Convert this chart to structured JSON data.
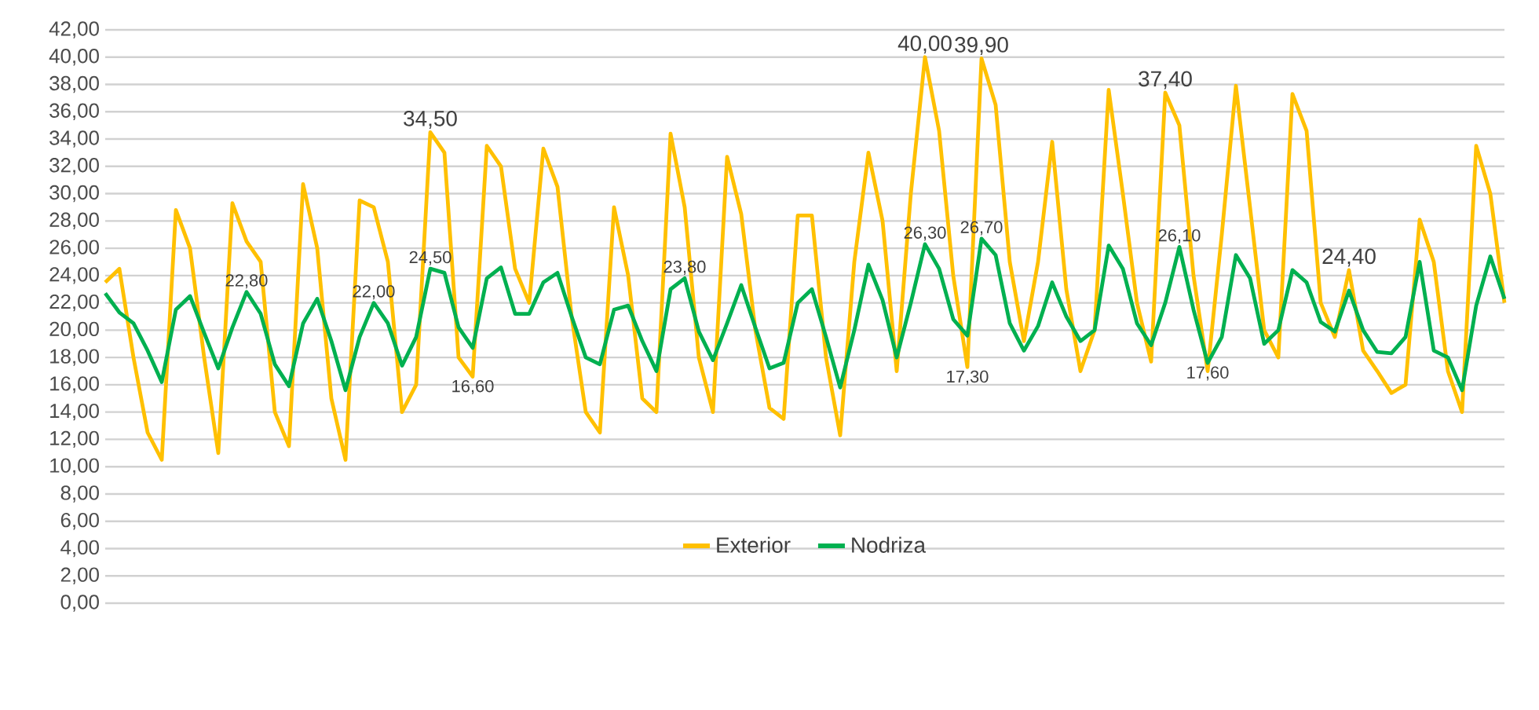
{
  "chart_data": {
    "type": "line",
    "categories": [
      null,
      null,
      null,
      null,
      null,
      null,
      null,
      null,
      null,
      null,
      null,
      null,
      null,
      null,
      null,
      null,
      null,
      null,
      null,
      null,
      null,
      null,
      null,
      null,
      null,
      null,
      null,
      null,
      null,
      null,
      null,
      null,
      null,
      null,
      null,
      null,
      null,
      null,
      null,
      null,
      null,
      null,
      null,
      null,
      null,
      null,
      null,
      null,
      null,
      null,
      null,
      null,
      null,
      null,
      null,
      null,
      null,
      null,
      null,
      null,
      null,
      null,
      null,
      null,
      null,
      null,
      null,
      null,
      null,
      null,
      null,
      null,
      null,
      null,
      null,
      null,
      null,
      null,
      null,
      null,
      null,
      null,
      null,
      null,
      null,
      null,
      null,
      null,
      null,
      null,
      null,
      null,
      null,
      null,
      null,
      null,
      null,
      null,
      null,
      null
    ],
    "series": [
      {
        "name": "Exterior",
        "color": "#ffc000",
        "values": [
          23.5,
          24.5,
          18,
          12.5,
          10.5,
          28.8,
          26,
          18,
          11,
          29.3,
          26.5,
          25,
          14,
          11.5,
          30.7,
          26,
          15,
          10.5,
          29.5,
          29,
          25,
          14,
          16,
          34.5,
          33,
          18,
          16.6,
          33.5,
          32,
          24.5,
          22,
          33.3,
          30.5,
          21,
          14,
          12.5,
          29,
          24,
          15,
          14,
          34.4,
          29,
          18,
          14,
          32.7,
          28.5,
          20,
          14.3,
          13.5,
          28.4,
          28.4,
          18,
          12.3,
          25,
          33,
          28,
          17,
          30,
          40,
          34.6,
          24,
          17.3,
          39.9,
          36.5,
          25,
          19.2,
          25,
          33.8,
          23,
          17,
          20,
          37.6,
          30,
          22,
          17.7,
          37.4,
          35,
          24,
          17,
          27,
          37.9,
          29,
          20,
          18,
          37.3,
          34.6,
          22,
          19.5,
          24.4,
          18.5,
          17,
          15.4,
          16,
          28.1,
          25,
          17,
          14,
          33.5,
          30,
          22
        ],
        "value_labels": [
          null,
          null,
          null,
          null,
          null,
          null,
          null,
          null,
          null,
          null,
          null,
          null,
          null,
          null,
          null,
          null,
          null,
          null,
          null,
          null,
          null,
          null,
          null,
          "34,50",
          null,
          null,
          "16,60",
          null,
          null,
          null,
          null,
          null,
          null,
          null,
          null,
          null,
          null,
          null,
          null,
          null,
          null,
          null,
          null,
          null,
          null,
          null,
          null,
          null,
          null,
          null,
          null,
          null,
          null,
          null,
          null,
          null,
          null,
          null,
          "40,00",
          null,
          null,
          "17,30",
          "39,90",
          null,
          null,
          null,
          null,
          null,
          null,
          null,
          null,
          null,
          null,
          null,
          null,
          "37,40",
          null,
          null,
          null,
          null,
          null,
          null,
          null,
          null,
          null,
          null,
          null,
          null,
          "24,40",
          null,
          null,
          null,
          null,
          null,
          null,
          null,
          null,
          null,
          null,
          null
        ]
      },
      {
        "name": "Nodriza",
        "color": "#00b050",
        "values": [
          22.7,
          21.3,
          20.5,
          18.5,
          16.2,
          21.5,
          22.5,
          19.8,
          17.2,
          20.2,
          22.8,
          21.2,
          17.5,
          15.9,
          20.5,
          22.3,
          19.2,
          15.6,
          19.5,
          22,
          20.5,
          17.4,
          19.5,
          24.5,
          24.2,
          20.2,
          18.7,
          23.8,
          24.6,
          21.2,
          21.2,
          23.5,
          24.2,
          21,
          18,
          17.5,
          21.5,
          21.8,
          19.2,
          17,
          23,
          23.8,
          19.9,
          17.8,
          20.5,
          23.3,
          20.2,
          17.2,
          17.6,
          22,
          23,
          19.5,
          15.8,
          20,
          24.8,
          22.2,
          18,
          22,
          26.3,
          24.5,
          20.8,
          19.6,
          26.7,
          25.5,
          20.5,
          18.5,
          20.3,
          23.5,
          21,
          19.2,
          20,
          26.2,
          24.5,
          20.5,
          18.9,
          22,
          26.1,
          21.5,
          17.6,
          19.5,
          25.5,
          23.8,
          19,
          20,
          24.4,
          23.5,
          20.6,
          19.9,
          22.9,
          20,
          18.4,
          18.3,
          19.5,
          25,
          18.5,
          18,
          15.6,
          21.8,
          25.4,
          22.3
        ],
        "value_labels": [
          null,
          null,
          null,
          null,
          null,
          null,
          null,
          null,
          null,
          null,
          "22,80",
          null,
          null,
          null,
          null,
          null,
          null,
          null,
          null,
          "22,00",
          null,
          null,
          null,
          "24,50",
          null,
          null,
          null,
          null,
          null,
          null,
          null,
          null,
          null,
          null,
          null,
          null,
          null,
          null,
          null,
          null,
          null,
          "23,80",
          null,
          null,
          null,
          null,
          null,
          null,
          null,
          null,
          null,
          null,
          null,
          null,
          null,
          null,
          null,
          null,
          "26,30",
          null,
          null,
          null,
          "26,70",
          null,
          null,
          null,
          null,
          null,
          null,
          null,
          null,
          null,
          null,
          null,
          null,
          null,
          "26,10",
          null,
          "17,60",
          null,
          null,
          null,
          null,
          null,
          null,
          null,
          null,
          null,
          null,
          null,
          null,
          null,
          null,
          null,
          null,
          null,
          null,
          null,
          null,
          null
        ]
      }
    ],
    "ylim": [
      0,
      42
    ],
    "yticks": [
      {
        "value": 0,
        "label": "0,00"
      },
      {
        "value": 2,
        "label": "2,00"
      },
      {
        "value": 4,
        "label": "4,00"
      },
      {
        "value": 6,
        "label": "6,00"
      },
      {
        "value": 8,
        "label": "8,00"
      },
      {
        "value": 10,
        "label": "10,00"
      },
      {
        "value": 12,
        "label": "12,00"
      },
      {
        "value": 14,
        "label": "14,00"
      },
      {
        "value": 16,
        "label": "16,00"
      },
      {
        "value": 18,
        "label": "18,00"
      },
      {
        "value": 20,
        "label": "20,00"
      },
      {
        "value": 22,
        "label": "22,00"
      },
      {
        "value": 24,
        "label": "24,00"
      },
      {
        "value": 26,
        "label": "26,00"
      },
      {
        "value": 28,
        "label": "28,00"
      },
      {
        "value": 30,
        "label": "30,00"
      },
      {
        "value": 32,
        "label": "32,00"
      },
      {
        "value": 34,
        "label": "34,00"
      },
      {
        "value": 36,
        "label": "36,00"
      },
      {
        "value": 38,
        "label": "38,00"
      },
      {
        "value": 40,
        "label": "40,00"
      },
      {
        "value": 42,
        "label": "42,00"
      }
    ],
    "grid": "y",
    "legend": "bottom",
    "tick_labels": "y"
  }
}
